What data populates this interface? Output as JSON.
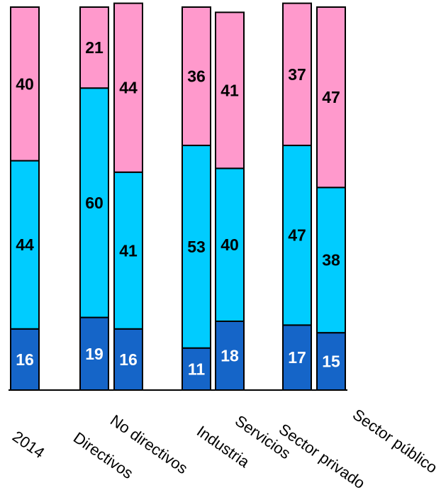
{
  "chart_data": {
    "type": "bar",
    "stacked": true,
    "orientation": "vertical",
    "categories": [
      "2014",
      "Directivos",
      "No directivos",
      "Industria",
      "Servicios",
      "Sector privado",
      "Sector público"
    ],
    "series": [
      {
        "values": [
          16,
          19,
          16,
          11,
          18,
          17,
          15
        ],
        "color": "#1565C8",
        "label_color": "#ffffff"
      },
      {
        "values": [
          44,
          60,
          41,
          53,
          40,
          47,
          38
        ],
        "color": "#00CCFF",
        "label_color": "#000000"
      },
      {
        "values": [
          40,
          21,
          44,
          36,
          41,
          37,
          47
        ],
        "color": "#FF99CC",
        "label_color": "#000000"
      }
    ],
    "ylim": [
      0,
      100
    ],
    "grid": false,
    "legend": "none",
    "colors": {
      "border": "#000000",
      "axis": "#000000"
    }
  }
}
